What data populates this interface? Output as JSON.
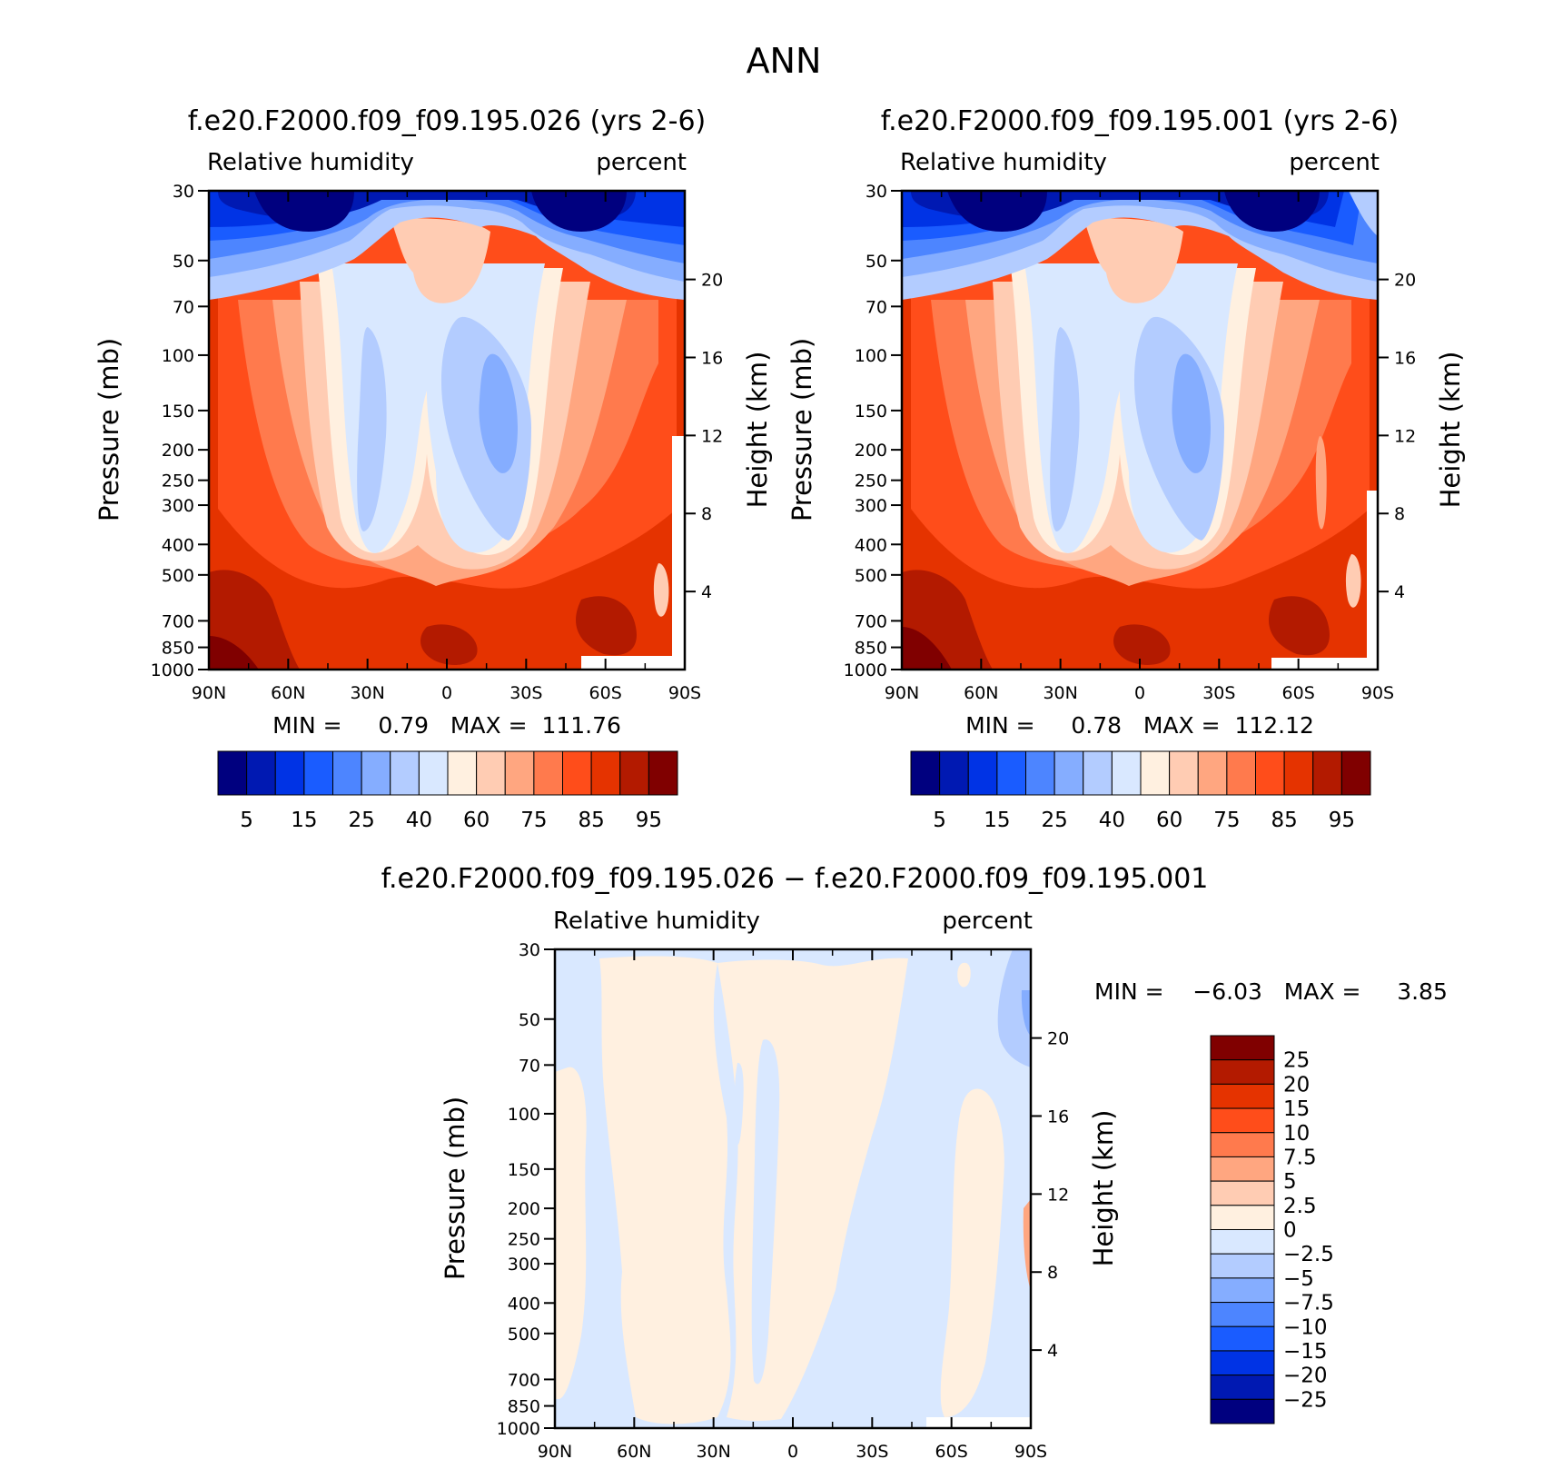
{
  "figure_title": "ANN",
  "colors": {
    "rh_levels": [
      "#00007f",
      "#0019b2",
      "#0033e5",
      "#1a5cff",
      "#4d85ff",
      "#85adff",
      "#b3ccff",
      "#d9e8ff",
      "#fff0e0",
      "#ffccb3",
      "#ffa680",
      "#ff7a4d",
      "#ff4d1a",
      "#e53300",
      "#b31a00",
      "#800000"
    ],
    "diff_levels": [
      "#00007f",
      "#0019b2",
      "#0033e5",
      "#1a5cff",
      "#4d85ff",
      "#85adff",
      "#b3ccff",
      "#d9e8ff",
      "#fff0e0",
      "#ffccb3",
      "#ffa680",
      "#ff7a4d",
      "#ff4d1a",
      "#e53300",
      "#b31a00",
      "#800000"
    ]
  },
  "chart_data": [
    {
      "type": "heatmap",
      "title": "f.e20.F2000.f09_f09.195.026 (yrs 2-6)",
      "field_label": "Relative humidity",
      "units_label": "percent",
      "ylabel": "Pressure (mb)",
      "ylabel_right": "Height (km)",
      "x_ticks": [
        "90N",
        "60N",
        "30N",
        "0",
        "30S",
        "60S",
        "90S"
      ],
      "y_ticks": [
        30,
        50,
        70,
        100,
        150,
        200,
        250,
        300,
        400,
        500,
        700,
        850,
        1000
      ],
      "y_ticks_right": [
        20,
        16,
        12,
        8,
        4
      ],
      "min_text": "MIN =     0.79   MAX =  111.76",
      "colorbar_labels": [
        "5",
        "15",
        "25",
        "40",
        "60",
        "75",
        "85",
        "95"
      ]
    },
    {
      "type": "heatmap",
      "title": "f.e20.F2000.f09_f09.195.001 (yrs 2-6)",
      "field_label": "Relative humidity",
      "units_label": "percent",
      "ylabel": "Pressure (mb)",
      "ylabel_right": "Height (km)",
      "x_ticks": [
        "90N",
        "60N",
        "30N",
        "0",
        "30S",
        "60S",
        "90S"
      ],
      "y_ticks": [
        30,
        50,
        70,
        100,
        150,
        200,
        250,
        300,
        400,
        500,
        700,
        850,
        1000
      ],
      "y_ticks_right": [
        20,
        16,
        12,
        8,
        4
      ],
      "min_text": "MIN =     0.78   MAX =  112.12",
      "colorbar_labels": [
        "5",
        "15",
        "25",
        "40",
        "60",
        "75",
        "85",
        "95"
      ]
    },
    {
      "type": "heatmap",
      "title": "f.e20.F2000.f09_f09.195.026 − f.e20.F2000.f09_f09.195.001",
      "field_label": "Relative humidity",
      "units_label": "percent",
      "ylabel": "Pressure (mb)",
      "ylabel_right": "Height (km)",
      "x_ticks": [
        "90N",
        "60N",
        "30N",
        "0",
        "30S",
        "60S",
        "90S"
      ],
      "y_ticks": [
        30,
        50,
        70,
        100,
        150,
        200,
        250,
        300,
        400,
        500,
        700,
        850,
        1000
      ],
      "y_ticks_right": [
        20,
        16,
        12,
        8,
        4
      ],
      "min_text": "MIN =    −6.03   MAX =     3.85",
      "colorbar_labels": [
        "25",
        "20",
        "15",
        "10",
        "7.5",
        "5",
        "2.5",
        "0",
        "−2.5",
        "−5",
        "−7.5",
        "−10",
        "−15",
        "−20",
        "−25"
      ]
    }
  ]
}
